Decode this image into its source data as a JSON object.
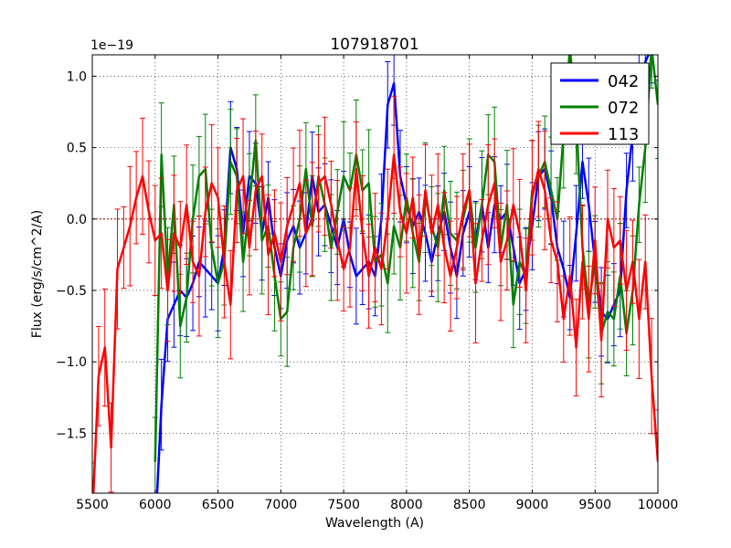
{
  "chart_data": {
    "type": "line",
    "title": "107918701",
    "xlabel": "Wavelength (A)",
    "ylabel": "Flux (erg/s/cm^2/A)",
    "offset_label": "1e−19",
    "xlim": [
      5500,
      10000
    ],
    "ylim": [
      -1.92,
      1.15
    ],
    "grid": true,
    "legend_position": "top-right",
    "xticks": [
      5500,
      6000,
      6500,
      7000,
      7500,
      8000,
      8500,
      9000,
      9500,
      10000
    ],
    "xtick_labels": [
      "5500",
      "6000",
      "6500",
      "7000",
      "7500",
      "8000",
      "8500",
      "9000",
      "9500",
      "10000"
    ],
    "yticks": [
      -1.5,
      -1.0,
      -0.5,
      0.0,
      0.5,
      1.0
    ],
    "ytick_labels": [
      "−1.5",
      "−1.0",
      "−0.5",
      "0.0",
      "0.5",
      "1.0"
    ],
    "zero_line": true,
    "series": [
      {
        "name": "042",
        "color": "#0000ff",
        "x": [
          6000,
          6050,
          6100,
          6150,
          6200,
          6250,
          6300,
          6350,
          6400,
          6450,
          6500,
          6550,
          6600,
          6650,
          6700,
          6750,
          6800,
          6850,
          6900,
          6950,
          7000,
          7050,
          7100,
          7150,
          7200,
          7250,
          7300,
          7350,
          7400,
          7450,
          7500,
          7550,
          7600,
          7650,
          7700,
          7750,
          7800,
          7850,
          7900,
          7950,
          8000,
          8050,
          8100,
          8150,
          8200,
          8250,
          8300,
          8350,
          8400,
          8450,
          8500,
          8550,
          8600,
          8650,
          8700,
          8750,
          8800,
          8850,
          8900,
          8950,
          9000,
          9050,
          9100,
          9150,
          9200,
          9250,
          9300,
          9350,
          9400,
          9450,
          9500,
          9550,
          9600,
          9650,
          9700,
          9750,
          9800,
          9850,
          9900,
          9950,
          10000
        ],
        "y": [
          -2.2,
          -1.3,
          -0.7,
          -0.6,
          -0.5,
          -0.55,
          -0.45,
          -0.3,
          -0.35,
          -0.4,
          -0.45,
          -0.2,
          0.5,
          0.35,
          -0.1,
          0.3,
          0.25,
          -0.1,
          0.15,
          -0.2,
          -0.4,
          -0.15,
          -0.05,
          -0.2,
          -0.1,
          0.3,
          0.05,
          0.1,
          -0.05,
          -0.2,
          0.0,
          -0.25,
          -0.4,
          -0.35,
          -0.3,
          -0.4,
          0.0,
          0.8,
          0.95,
          0.3,
          0.1,
          -0.05,
          0.05,
          -0.1,
          -0.3,
          -0.1,
          0.05,
          -0.2,
          -0.4,
          -0.1,
          0.05,
          -0.15,
          0.1,
          -0.2,
          0.1,
          0.0,
          0.05,
          -0.2,
          -0.45,
          -0.35,
          -0.05,
          0.3,
          0.35,
          0.15,
          -0.2,
          -0.35,
          -0.55,
          -0.1,
          0.4,
          0.1,
          -0.3,
          -0.65,
          -0.7,
          -0.6,
          -0.5,
          0.2,
          0.6,
          0.95,
          1.1,
          1.2,
          1.3
        ],
        "err": 0.28
      },
      {
        "name": "072",
        "color": "#008000",
        "x": [
          6000,
          6050,
          6100,
          6150,
          6200,
          6250,
          6300,
          6350,
          6400,
          6450,
          6500,
          6550,
          6600,
          6650,
          6700,
          6750,
          6800,
          6850,
          6900,
          6950,
          7000,
          7050,
          7100,
          7150,
          7200,
          7250,
          7300,
          7350,
          7400,
          7450,
          7500,
          7550,
          7600,
          7650,
          7700,
          7750,
          7800,
          7850,
          7900,
          7950,
          8000,
          8050,
          8100,
          8150,
          8200,
          8250,
          8300,
          8350,
          8400,
          8450,
          8500,
          8550,
          8600,
          8650,
          8700,
          8750,
          8800,
          8850,
          8900,
          8950,
          9000,
          9050,
          9100,
          9150,
          9200,
          9250,
          9300,
          9350,
          9400,
          9450,
          9500,
          9550,
          9600,
          9650,
          9700,
          9750,
          9800,
          9850,
          9900,
          9950,
          10000
        ],
        "y": [
          -1.7,
          0.45,
          -0.4,
          0.1,
          -0.75,
          -0.55,
          0.0,
          0.3,
          0.35,
          -0.2,
          -0.45,
          -0.3,
          0.4,
          0.3,
          -0.3,
          0.1,
          0.55,
          -0.15,
          -0.05,
          -0.4,
          -0.7,
          -0.65,
          -0.2,
          0.0,
          0.35,
          -0.05,
          0.3,
          0.1,
          -0.2,
          0.05,
          0.3,
          0.2,
          0.45,
          0.2,
          0.25,
          -0.3,
          -0.25,
          -0.45,
          -0.05,
          -0.2,
          0.15,
          -0.1,
          -0.3,
          0.15,
          -0.05,
          -0.2,
          0.2,
          -0.1,
          -0.15,
          0.0,
          0.2,
          -0.2,
          0.1,
          0.45,
          0.4,
          -0.2,
          0.1,
          -0.6,
          -0.3,
          -0.4,
          0.2,
          0.3,
          0.4,
          0.2,
          0.0,
          0.6,
          1.2,
          0.7,
          -0.2,
          -0.6,
          -0.3,
          -0.8,
          -0.65,
          -0.7,
          -0.4,
          -0.8,
          -0.5,
          0.1,
          0.5,
          1.2,
          0.8
        ],
        "err": 0.32
      },
      {
        "name": "113",
        "color": "#ff0000",
        "x": [
          5500,
          5550,
          5600,
          5650,
          5700,
          5750,
          5800,
          5850,
          5900,
          5950,
          6000,
          6050,
          6100,
          6150,
          6200,
          6250,
          6300,
          6350,
          6400,
          6450,
          6500,
          6550,
          6600,
          6650,
          6700,
          6750,
          6800,
          6850,
          6900,
          6950,
          7000,
          7050,
          7100,
          7150,
          7200,
          7250,
          7300,
          7350,
          7400,
          7450,
          7500,
          7550,
          7600,
          7650,
          7700,
          7750,
          7800,
          7850,
          7900,
          7950,
          8000,
          8050,
          8100,
          8150,
          8200,
          8250,
          8300,
          8350,
          8400,
          8450,
          8500,
          8550,
          8600,
          8650,
          8700,
          8750,
          8800,
          8850,
          8900,
          8950,
          9000,
          9050,
          9100,
          9150,
          9200,
          9250,
          9300,
          9350,
          9400,
          9450,
          9500,
          9550,
          9600,
          9650,
          9700,
          9750,
          9800,
          9850,
          9900,
          9950,
          10000
        ],
        "y": [
          -2.1,
          -1.1,
          -0.9,
          -1.6,
          -0.35,
          -0.2,
          -0.05,
          0.15,
          0.3,
          0.05,
          -0.15,
          -0.1,
          -0.5,
          -0.1,
          -0.2,
          0.1,
          -0.3,
          -0.4,
          0.05,
          0.25,
          0.15,
          -0.3,
          -0.6,
          0.2,
          0.3,
          -0.2,
          0.2,
          0.3,
          -0.25,
          -0.1,
          -0.3,
          -0.05,
          0.1,
          0.25,
          -0.1,
          0.0,
          0.25,
          0.3,
          0.1,
          -0.15,
          -0.35,
          -0.2,
          0.35,
          -0.1,
          -0.4,
          -0.2,
          -0.35,
          0.0,
          0.45,
          0.05,
          -0.1,
          0.15,
          -0.25,
          0.2,
          -0.1,
          0.1,
          -0.2,
          -0.4,
          -0.2,
          0.05,
          0.2,
          -0.45,
          -0.15,
          0.1,
          0.25,
          -0.3,
          -0.15,
          0.1,
          -0.1,
          -0.5,
          0.15,
          0.35,
          0.2,
          -0.15,
          -0.3,
          -0.7,
          -0.4,
          -0.9,
          -0.3,
          -0.7,
          -0.15,
          -0.85,
          0.0,
          -0.2,
          -0.15,
          -0.5,
          -0.3,
          -0.7,
          -0.3,
          -1.1,
          -1.7
        ],
        "err": 0.35
      }
    ]
  }
}
